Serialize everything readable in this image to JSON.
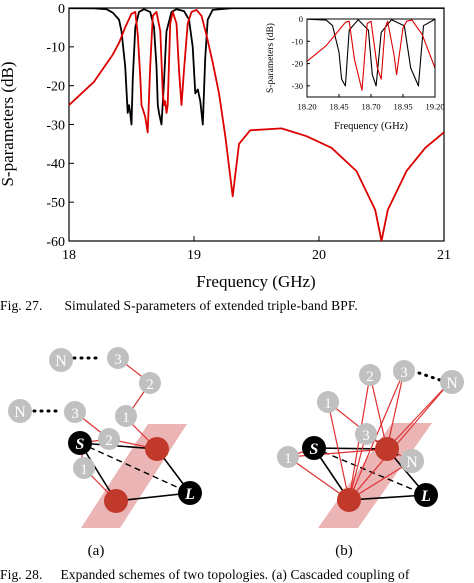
{
  "figure27": {
    "caption_label": "Fig. 27.",
    "caption_text": "Simulated S-parameters of extended triple-band BPF.",
    "chart_data": {
      "type": "line",
      "xlabel": "Frequency (GHz)",
      "ylabel": "S-parameters (dB)",
      "xlim": [
        18,
        21
      ],
      "ylim": [
        -60,
        0
      ],
      "x_ticks": [
        "18",
        "19",
        "20",
        "21"
      ],
      "y_ticks": [
        "0",
        "-10",
        "-20",
        "-30",
        "-40",
        "-50",
        "-60"
      ],
      "grid": false,
      "series": [
        {
          "color": "#000000",
          "points": [
            [
              18.0,
              -0.05
            ],
            [
              18.2,
              -0.08
            ],
            [
              18.3,
              -0.3
            ],
            [
              18.35,
              -1.2
            ],
            [
              18.4,
              -3
            ],
            [
              18.42,
              -6
            ],
            [
              18.45,
              -15
            ],
            [
              18.47,
              -27
            ],
            [
              18.48,
              -25
            ],
            [
              18.49,
              -27
            ],
            [
              18.5,
              -30
            ],
            [
              18.51,
              -18
            ],
            [
              18.53,
              -5
            ],
            [
              18.56,
              -1
            ],
            [
              18.6,
              -0.3
            ],
            [
              18.65,
              -1
            ],
            [
              18.68,
              -5
            ],
            [
              18.7,
              -15
            ],
            [
              18.71,
              -25
            ],
            [
              18.72,
              -27
            ],
            [
              18.74,
              -30
            ],
            [
              18.76,
              -19
            ],
            [
              18.78,
              -6
            ],
            [
              18.82,
              -1
            ],
            [
              18.86,
              -0.3
            ],
            [
              18.92,
              -0.8
            ],
            [
              18.96,
              -3
            ],
            [
              18.99,
              -10
            ],
            [
              19.01,
              -22
            ],
            [
              19.03,
              -21
            ],
            [
              19.05,
              -24
            ],
            [
              19.07,
              -30
            ],
            [
              19.09,
              -13
            ],
            [
              19.11,
              -3
            ],
            [
              19.15,
              -0.5
            ],
            [
              19.3,
              -0.05
            ],
            [
              21.0,
              -0.01
            ]
          ]
        },
        {
          "color": "#dd0000",
          "points": [
            [
              18.0,
              -25
            ],
            [
              18.2,
              -19
            ],
            [
              18.35,
              -12
            ],
            [
              18.4,
              -9
            ],
            [
              18.45,
              -5
            ],
            [
              18.5,
              -1.5
            ],
            [
              18.53,
              -1
            ],
            [
              18.55,
              -7
            ],
            [
              18.57,
              -18
            ],
            [
              18.58,
              -25
            ],
            [
              18.59,
              -26
            ],
            [
              18.61,
              -28
            ],
            [
              18.63,
              -32
            ],
            [
              18.65,
              -15
            ],
            [
              18.67,
              -2
            ],
            [
              18.7,
              -1
            ],
            [
              18.73,
              -6
            ],
            [
              18.75,
              -22
            ],
            [
              18.76,
              -25
            ],
            [
              18.77,
              -24
            ],
            [
              18.78,
              -27
            ],
            [
              18.79,
              -25
            ],
            [
              18.81,
              -4
            ],
            [
              18.83,
              -1
            ],
            [
              18.86,
              -4
            ],
            [
              18.88,
              -16
            ],
            [
              18.9,
              -25
            ],
            [
              18.92,
              -16
            ],
            [
              18.95,
              -4
            ],
            [
              18.98,
              -1
            ],
            [
              19.02,
              -0.5
            ],
            [
              19.06,
              -2
            ],
            [
              19.1,
              -7
            ],
            [
              19.15,
              -14
            ],
            [
              19.2,
              -22
            ],
            [
              19.25,
              -33
            ],
            [
              19.31,
              -48.5
            ],
            [
              19.36,
              -35
            ],
            [
              19.45,
              -31.5
            ],
            [
              19.7,
              -31
            ],
            [
              19.9,
              -33
            ],
            [
              20.1,
              -36
            ],
            [
              20.3,
              -42
            ],
            [
              20.45,
              -52
            ],
            [
              20.5,
              -60
            ],
            [
              20.55,
              -52
            ],
            [
              20.7,
              -42
            ],
            [
              20.85,
              -36
            ],
            [
              21.0,
              -32
            ]
          ]
        }
      ],
      "inset": {
        "type": "line",
        "xlabel": "Frequency (GHz)",
        "ylabel": "S-parameters (dB)",
        "xlim": [
          18.2,
          19.2
        ],
        "ylim": [
          -35,
          0
        ],
        "x_ticks": [
          "18.20",
          "18.45",
          "18.70",
          "18.95",
          "19.20"
        ],
        "y_ticks": [
          "0",
          "-10",
          "-20",
          "-30"
        ],
        "series": [
          {
            "color": "#000000",
            "points": [
              [
                18.2,
                -0.1
              ],
              [
                18.35,
                -0.5
              ],
              [
                18.4,
                -3
              ],
              [
                18.45,
                -15
              ],
              [
                18.47,
                -27
              ],
              [
                18.5,
                -30
              ],
              [
                18.53,
                -5
              ],
              [
                18.6,
                -0.3
              ],
              [
                18.68,
                -5
              ],
              [
                18.71,
                -25
              ],
              [
                18.74,
                -30
              ],
              [
                18.78,
                -6
              ],
              [
                18.86,
                -0.3
              ],
              [
                18.96,
                -3
              ],
              [
                19.01,
                -22
              ],
              [
                19.07,
                -30
              ],
              [
                19.11,
                -3
              ],
              [
                19.2,
                -0.1
              ]
            ]
          },
          {
            "color": "#dd0000",
            "points": [
              [
                18.2,
                -19
              ],
              [
                18.35,
                -12
              ],
              [
                18.45,
                -5
              ],
              [
                18.5,
                -1.5
              ],
              [
                18.53,
                -1
              ],
              [
                18.57,
                -18
              ],
              [
                18.63,
                -32
              ],
              [
                18.67,
                -2
              ],
              [
                18.7,
                -1
              ],
              [
                18.75,
                -22
              ],
              [
                18.78,
                -27
              ],
              [
                18.81,
                -4
              ],
              [
                18.83,
                -1
              ],
              [
                18.88,
                -16
              ],
              [
                18.9,
                -25
              ],
              [
                18.95,
                -4
              ],
              [
                18.98,
                -1
              ],
              [
                19.02,
                -0.5
              ],
              [
                19.1,
                -7
              ],
              [
                19.2,
                -22
              ]
            ]
          }
        ]
      }
    }
  },
  "figure28": {
    "caption_label": "Fig. 28.",
    "caption_text": "Expanded schemes of two topologies. (a) Cascaded coupling of",
    "panel_a": {
      "label": "(a)",
      "nodes": {
        "N_top": "N",
        "n3_top": "3",
        "n2_top": "2",
        "n1_top": "1",
        "N_mid": "N",
        "n3_mid": "3",
        "n2_mid": "2",
        "n1_low": "1",
        "S": "S",
        "L": "L"
      }
    },
    "panel_b": {
      "label": "(b)",
      "nodes": {
        "n2": "2",
        "n3": "3",
        "N_right": "N",
        "n1_left": "1",
        "n1_ring": "1",
        "N_ring": "N",
        "n3_ring": "3",
        "S": "S",
        "L": "L"
      }
    },
    "colors": {
      "resonator_red": "#c0392b",
      "band": "#e8a8a8",
      "gray_node": "#c0c0c0",
      "red_line": "#e03030"
    }
  }
}
